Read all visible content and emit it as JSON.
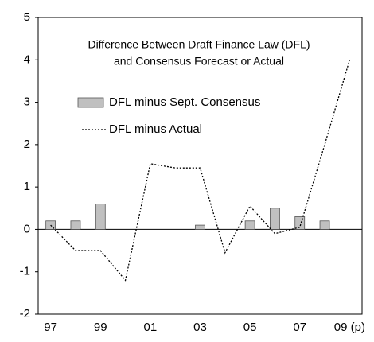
{
  "chart_data": {
    "type": "bar_line",
    "title": [
      "Difference Between Draft Finance Law (DFL)",
      "and Consensus Forecast or Actual"
    ],
    "categories": [
      "97",
      null,
      "99",
      null,
      "01",
      null,
      "03",
      null,
      "05",
      null,
      "07",
      null,
      "09 (p)"
    ],
    "series": [
      {
        "name": "DFL minus Sept. Consensus",
        "type": "bar",
        "color": "#c0c0c0",
        "values": [
          0.2,
          0.2,
          0.6,
          null,
          null,
          null,
          0.1,
          null,
          0.2,
          0.5,
          0.3,
          0.2,
          null
        ]
      },
      {
        "name": "DFL minus Actual",
        "type": "line",
        "color": "#000000",
        "values": [
          0.1,
          -0.5,
          -0.5,
          -1.2,
          1.55,
          1.45,
          1.45,
          -0.55,
          0.55,
          -0.1,
          0.05,
          2.0,
          4.0
        ]
      }
    ],
    "ylim": [
      -2,
      5
    ],
    "yticks": [
      -2,
      -1,
      0,
      1,
      2,
      3,
      4,
      5
    ]
  }
}
